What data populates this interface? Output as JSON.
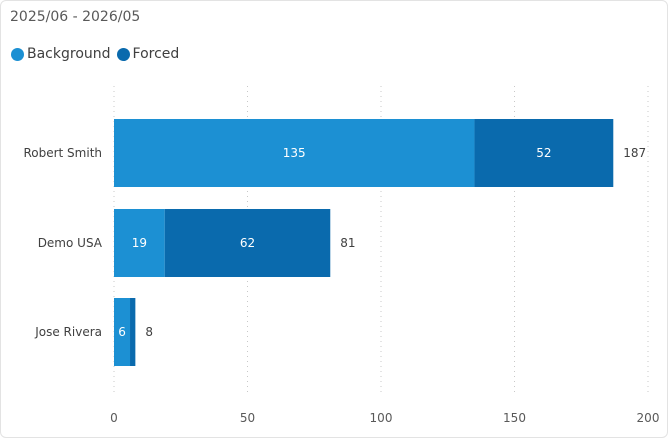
{
  "subtitle": "2025/06 - 2026/05",
  "chart_data": {
    "type": "bar",
    "orientation": "horizontal",
    "stacked": true,
    "categories": [
      "Robert Smith",
      "Demo USA",
      "Jose Rivera"
    ],
    "series": [
      {
        "name": "Background",
        "values": [
          135,
          19,
          6
        ],
        "color": "#1c90d3",
        "labels": [
          "135",
          "19",
          "6"
        ]
      },
      {
        "name": "Forced",
        "values": [
          52,
          62,
          2
        ],
        "color": "#0a6aad",
        "labels": [
          "52",
          "62",
          ""
        ]
      }
    ],
    "totals": [
      "187",
      "81",
      "8"
    ],
    "xlim": [
      0,
      200
    ],
    "xticks": [
      0,
      50,
      100,
      150,
      200
    ],
    "grid": "vertical dotted",
    "legend_position": "top-left"
  }
}
